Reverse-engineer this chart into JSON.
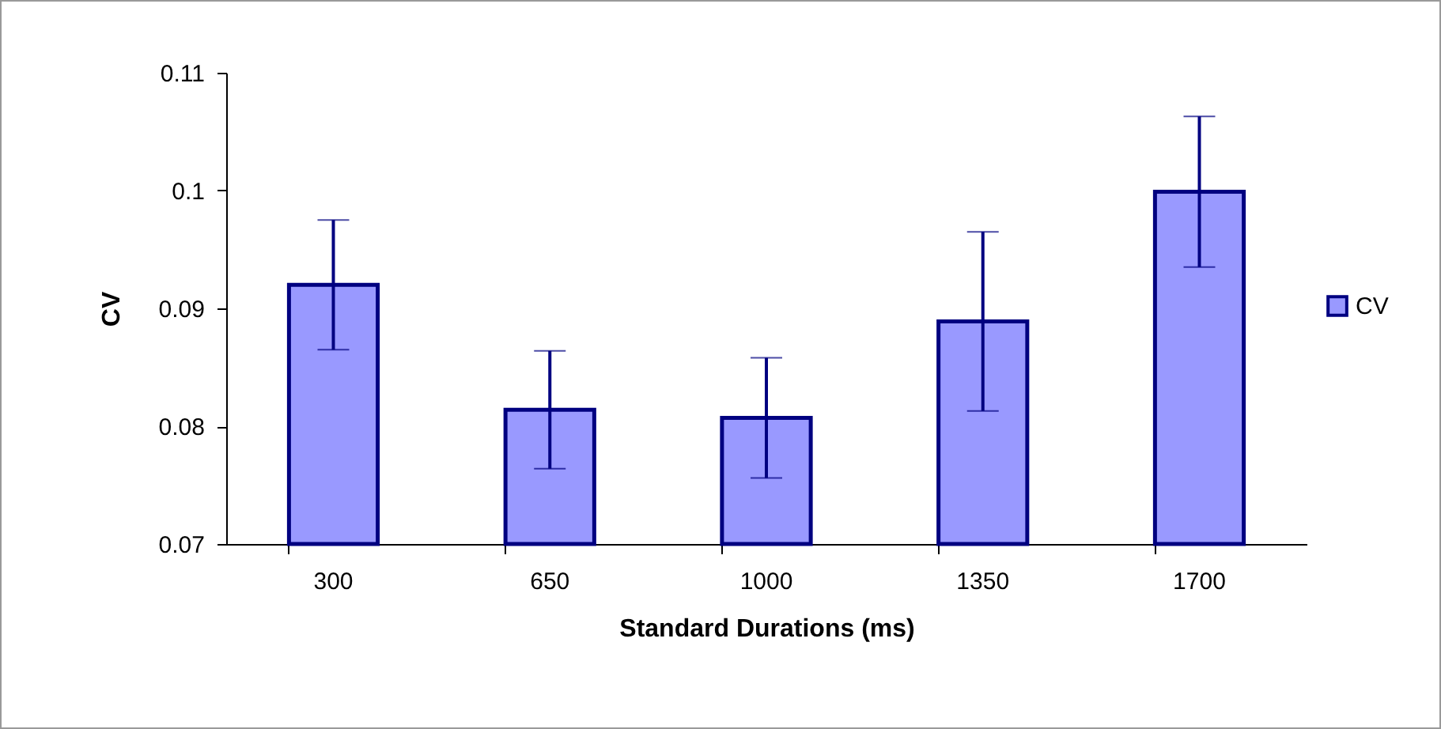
{
  "chart_data": {
    "type": "bar",
    "xlabel": "Standard Durations (ms)",
    "ylabel": "CV",
    "categories": [
      "300",
      "650",
      "1000",
      "1350",
      "1700"
    ],
    "series": [
      {
        "name": "CV",
        "color": "#9999ff",
        "values": [
          0.092,
          0.0814,
          0.0807,
          0.0889,
          0.0999
        ],
        "errors": [
          0.0055,
          0.005,
          0.0051,
          0.0076,
          0.0064
        ]
      }
    ],
    "ylim": [
      0.07,
      0.11
    ],
    "yticks": [
      0.07,
      0.08,
      0.09,
      0.1,
      0.11
    ],
    "grid": false,
    "legend": "right"
  }
}
